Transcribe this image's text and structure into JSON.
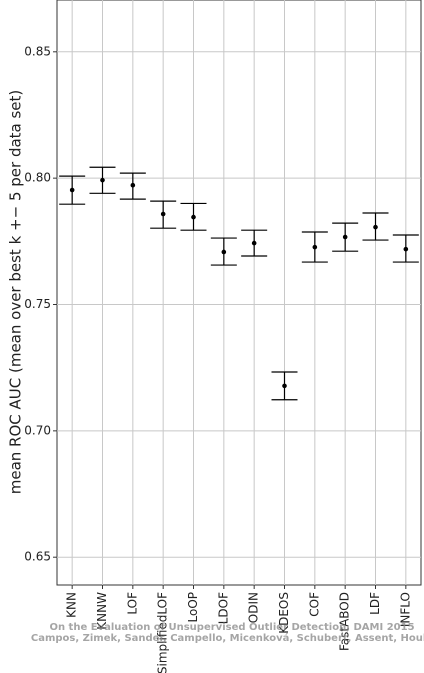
{
  "chart_data": {
    "type": "errorbar",
    "y_label": "mean ROC AUC (mean over best k +− 5 per data set)",
    "categories": [
      "KNN",
      "KNNW",
      "LOF",
      "SimplifiedLOF",
      "LoOP",
      "LDOF",
      "ODIN",
      "KDEOS",
      "COF",
      "FastABOD",
      "LDF",
      "INFLO"
    ],
    "values": [
      0.7953,
      0.7992,
      0.7972,
      0.7858,
      0.7846,
      0.7708,
      0.7743,
      0.7178,
      0.7727,
      0.7767,
      0.7806,
      0.7719
    ],
    "lower": [
      0.7897,
      0.794,
      0.7917,
      0.7802,
      0.7794,
      0.7656,
      0.7692,
      0.7123,
      0.7668,
      0.7711,
      0.7755,
      0.7668
    ],
    "upper": [
      0.8008,
      0.8043,
      0.802,
      0.7909,
      0.79,
      0.7763,
      0.7794,
      0.7233,
      0.7787,
      0.7822,
      0.7862,
      0.7775
    ],
    "color": "#000000",
    "ylim": [
      0.639,
      0.8705
    ],
    "yticks": [
      {
        "value": 0.65,
        "label": "0.65"
      },
      {
        "value": 0.7,
        "label": "0.70"
      },
      {
        "value": 0.75,
        "label": "0.75"
      },
      {
        "value": 0.8,
        "label": "0.80"
      },
      {
        "value": 0.85,
        "label": "0.85"
      }
    ],
    "grid": true,
    "annotations": [
      "On the Evaluation of Unsupervised Outlier Detection, DAMI 2015",
      "Campos, Zimek, Sander, Campello, Micenková, Schubert, Assent, Houle"
    ]
  }
}
